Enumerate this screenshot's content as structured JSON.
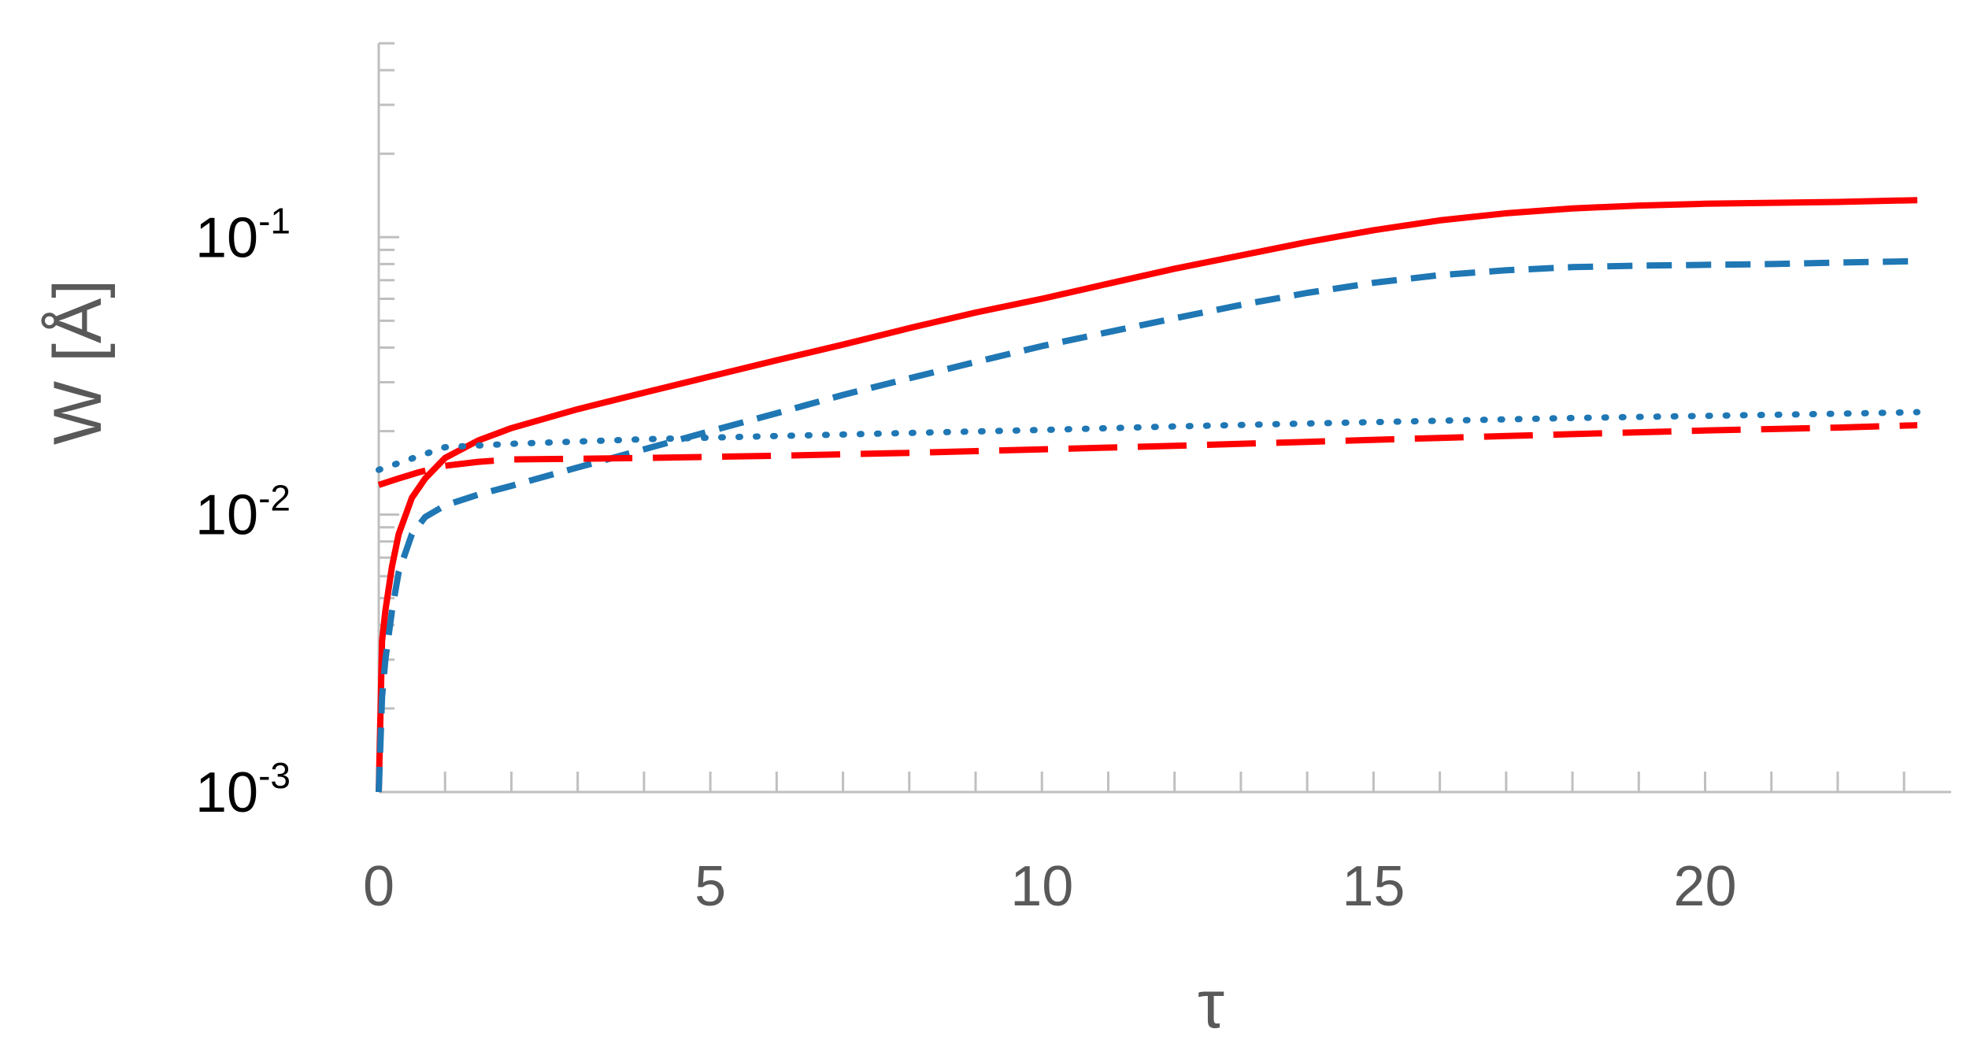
{
  "chart_data": {
    "type": "line",
    "title": "",
    "xlabel": "τ",
    "ylabel": "W [Å]",
    "y_scale": "log",
    "xlim": [
      0,
      23.2
    ],
    "ylim": [
      0.001,
      0.5
    ],
    "grid": false,
    "legend": "none",
    "x_ticks": [
      0,
      5,
      10,
      15,
      20
    ],
    "x_tick_labels": [
      "0",
      "5",
      "10",
      "15",
      "20"
    ],
    "y_ticks": [
      {
        "value": 0.001,
        "base": "10",
        "exp": "-3"
      },
      {
        "value": 0.01,
        "base": "10",
        "exp": "-2"
      },
      {
        "value": 0.1,
        "base": "10",
        "exp": "-1"
      }
    ],
    "series": [
      {
        "color": "#ff0000",
        "style": "solid",
        "x": [
          0,
          0.05,
          0.1,
          0.2,
          0.3,
          0.5,
          0.7,
          1.0,
          1.5,
          2,
          3,
          4,
          5,
          6,
          7,
          8,
          9,
          10,
          11,
          12,
          13,
          14,
          15,
          16,
          17,
          18,
          19,
          20,
          21,
          22,
          23.2
        ],
        "y": [
          0.001,
          0.0035,
          0.0045,
          0.0065,
          0.0085,
          0.0115,
          0.0135,
          0.016,
          0.0185,
          0.0205,
          0.024,
          0.0275,
          0.0315,
          0.036,
          0.041,
          0.047,
          0.0535,
          0.06,
          0.068,
          0.077,
          0.086,
          0.096,
          0.106,
          0.115,
          0.122,
          0.127,
          0.13,
          0.132,
          0.133,
          0.134,
          0.136
        ]
      },
      {
        "color": "#1f77b4",
        "style": "dashed",
        "x": [
          0,
          0.05,
          0.1,
          0.2,
          0.3,
          0.5,
          0.7,
          1.0,
          1.5,
          2,
          3,
          4,
          5,
          6,
          7,
          8,
          9,
          10,
          11,
          12,
          13,
          14,
          15,
          16,
          17,
          18,
          19,
          20,
          21,
          22,
          23.2
        ],
        "y": [
          0.001,
          0.0022,
          0.003,
          0.0045,
          0.0062,
          0.0085,
          0.0098,
          0.0108,
          0.0118,
          0.0127,
          0.0148,
          0.0172,
          0.02,
          0.0232,
          0.027,
          0.031,
          0.0355,
          0.0405,
          0.0455,
          0.051,
          0.057,
          0.063,
          0.0685,
          0.073,
          0.076,
          0.078,
          0.079,
          0.0795,
          0.08,
          0.081,
          0.082
        ]
      },
      {
        "color": "#1f77b4",
        "style": "dotted",
        "x": [
          0,
          1,
          2,
          4,
          6,
          8,
          10,
          12,
          14,
          16,
          18,
          20,
          22,
          23.2
        ],
        "y": [
          0.0145,
          0.0175,
          0.018,
          0.0187,
          0.0192,
          0.0197,
          0.0202,
          0.0208,
          0.0213,
          0.0218,
          0.0223,
          0.0227,
          0.0231,
          0.0234
        ]
      },
      {
        "color": "#ff0000",
        "style": "long-dash",
        "x": [
          0,
          0.3,
          0.6,
          1.0,
          1.5,
          2,
          4,
          6,
          8,
          10,
          12,
          14,
          16,
          18,
          20,
          22,
          23.2
        ],
        "y": [
          0.0128,
          0.0135,
          0.0142,
          0.015,
          0.0155,
          0.0158,
          0.016,
          0.0163,
          0.0167,
          0.0172,
          0.0177,
          0.0183,
          0.0189,
          0.0195,
          0.0201,
          0.0206,
          0.021
        ]
      }
    ]
  }
}
